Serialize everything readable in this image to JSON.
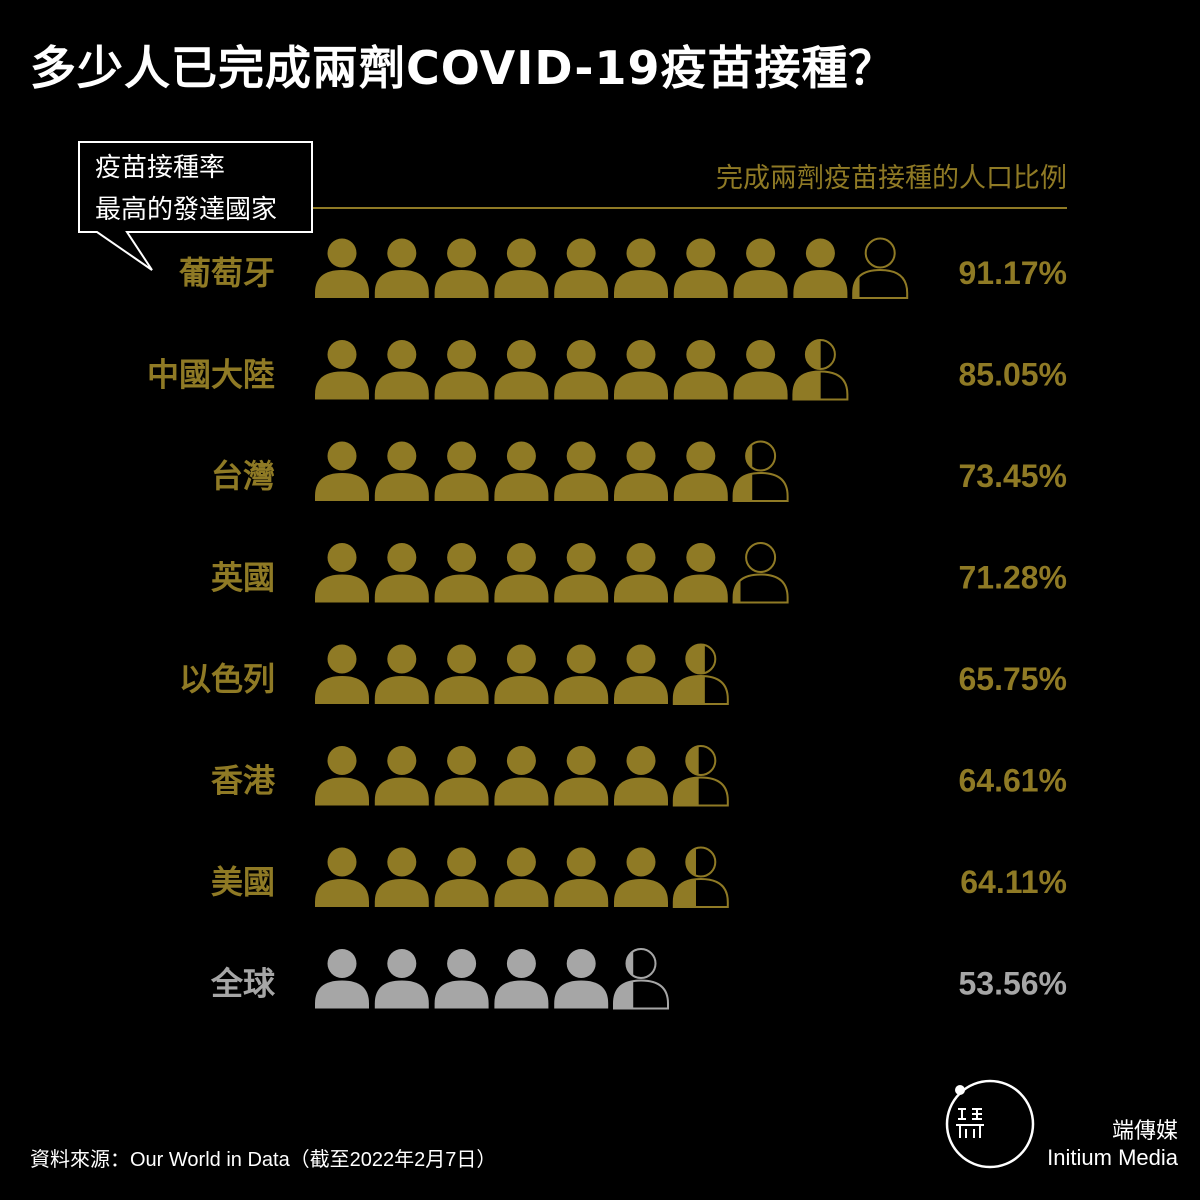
{
  "title": "多少人已完成兩劑COVID-19疫苗接種？",
  "subtitle": "完成兩劑疫苗接種的人口比例",
  "callout": {
    "line1": "疫苗接種率",
    "line2": "最高的發達國家"
  },
  "source": "資料來源：Our World in Data（截至2022年2月7日）",
  "brand": {
    "zh": "端傳媒",
    "en": "Initium Media"
  },
  "colors": {
    "accent": "#8f7a25",
    "world": "#a6a6a6",
    "background": "#000000",
    "text": "#ffffff"
  },
  "chart_data": {
    "type": "pictograph",
    "unit": "each icon = 10% of population",
    "categories": [
      "葡萄牙",
      "中國大陸",
      "台灣",
      "英國",
      "以色列",
      "香港",
      "美國",
      "全球"
    ],
    "values": [
      91.17,
      85.05,
      73.45,
      71.28,
      65.75,
      64.61,
      64.11,
      53.56
    ],
    "value_labels": [
      "91.17%",
      "85.05%",
      "73.45%",
      "71.28%",
      "65.75%",
      "64.61%",
      "64.11%",
      "53.56%"
    ],
    "highlight": [
      "accent",
      "accent",
      "accent",
      "accent",
      "accent",
      "accent",
      "accent",
      "world"
    ]
  }
}
